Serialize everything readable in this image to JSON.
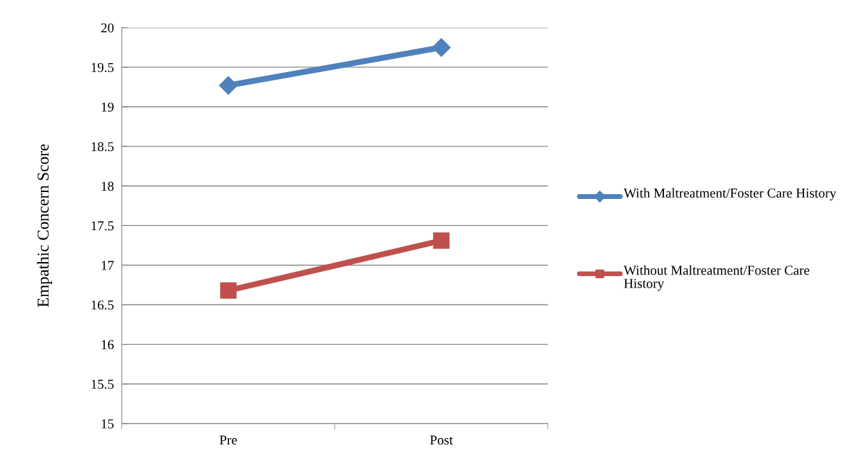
{
  "chart_data": {
    "type": "line",
    "ylabel": "Empathic Concern Score",
    "categories": [
      "Pre",
      "Post"
    ],
    "series": [
      {
        "name": "With Maltreatment/Foster Care History",
        "color": "#4f81bd",
        "values": [
          19.27,
          19.75
        ],
        "marker": "diamond"
      },
      {
        "name": "Without Maltreatment/Foster Care History",
        "color": "#c0504d",
        "values": [
          16.68,
          17.31
        ],
        "marker": "square"
      }
    ],
    "ylim": [
      15,
      20
    ],
    "yticks": [
      15,
      15.5,
      16,
      16.5,
      17,
      17.5,
      18,
      18.5,
      19,
      19.5,
      20
    ],
    "grid": "y",
    "legend": "right",
    "line_style": "solid"
  }
}
